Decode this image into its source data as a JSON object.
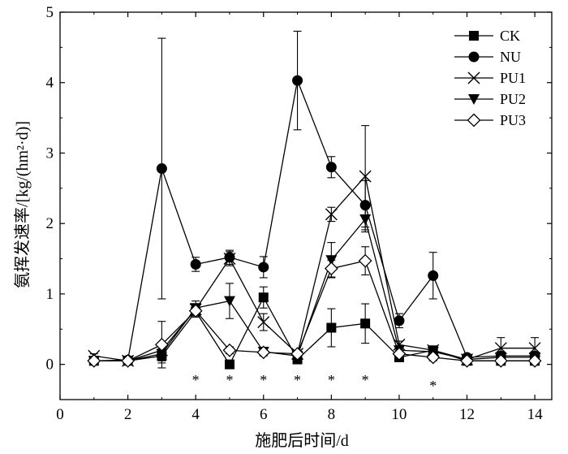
{
  "chart_data": {
    "type": "line",
    "title": "",
    "xlabel": "施肥后时间/d",
    "ylabel": "氨挥发速率/[kg/(hm²·d)]",
    "xlim": [
      0,
      14.5
    ],
    "ylim": [
      -0.5,
      5
    ],
    "xticks": [
      0,
      2,
      4,
      6,
      8,
      10,
      12,
      14
    ],
    "yticks": [
      0,
      1,
      2,
      3,
      4,
      5
    ],
    "grid": false,
    "legend_position": "top-right",
    "x": [
      1,
      2,
      3,
      4,
      5,
      6,
      7,
      8,
      9,
      10,
      11,
      12,
      13,
      14
    ],
    "series": [
      {
        "name": "CK",
        "marker": "square-filled",
        "values": [
          0.05,
          0.05,
          0.12,
          0.75,
          0.0,
          0.95,
          0.07,
          0.52,
          0.58,
          0.1,
          0.2,
          0.05,
          0.05,
          0.05
        ],
        "errors": [
          0.02,
          0.02,
          0.1,
          0.08,
          0.03,
          0.15,
          0.03,
          0.27,
          0.28,
          0.04,
          0.05,
          0.02,
          0.02,
          0.02
        ]
      },
      {
        "name": "NU",
        "marker": "circle-filled",
        "values": [
          0.05,
          0.06,
          2.78,
          1.42,
          1.52,
          1.38,
          4.03,
          2.8,
          2.26,
          0.62,
          1.26,
          0.1,
          0.12,
          0.12
        ],
        "errors": [
          0.02,
          0.02,
          1.85,
          0.1,
          0.1,
          0.15,
          0.7,
          0.15,
          0.35,
          0.1,
          0.33,
          0.03,
          0.03,
          0.03
        ]
      },
      {
        "name": "PU1",
        "marker": "x",
        "values": [
          0.12,
          0.05,
          0.2,
          0.78,
          1.5,
          0.6,
          0.15,
          2.13,
          2.67,
          0.28,
          0.2,
          0.07,
          0.23,
          0.23
        ],
        "errors": [
          0.03,
          0.02,
          0.1,
          0.08,
          0.1,
          0.12,
          0.05,
          0.1,
          0.72,
          0.05,
          0.05,
          0.03,
          0.15,
          0.15
        ]
      },
      {
        "name": "PU2",
        "marker": "triangle-down-filled",
        "values": [
          0.05,
          0.05,
          0.15,
          0.8,
          0.9,
          0.18,
          0.12,
          1.48,
          2.06,
          0.2,
          0.18,
          0.07,
          0.1,
          0.1
        ],
        "errors": [
          0.02,
          0.02,
          0.1,
          0.1,
          0.25,
          0.05,
          0.05,
          0.25,
          0.18,
          0.05,
          0.05,
          0.03,
          0.03,
          0.03
        ]
      },
      {
        "name": "PU3",
        "marker": "diamond-open",
        "values": [
          0.05,
          0.05,
          0.28,
          0.76,
          0.2,
          0.17,
          0.15,
          1.36,
          1.47,
          0.15,
          0.1,
          0.05,
          0.05,
          0.05
        ],
        "errors": [
          0.02,
          0.02,
          0.33,
          0.07,
          0.05,
          0.05,
          0.05,
          0.12,
          0.2,
          0.05,
          0.05,
          0.02,
          0.02,
          0.02
        ]
      }
    ],
    "significance": [
      {
        "x": 4,
        "label": "*"
      },
      {
        "x": 5,
        "label": "*"
      },
      {
        "x": 6,
        "label": "*"
      },
      {
        "x": 7,
        "label": "*"
      },
      {
        "x": 8,
        "label": "*"
      },
      {
        "x": 9,
        "label": "*"
      },
      {
        "x": 11,
        "label": "*"
      }
    ]
  }
}
